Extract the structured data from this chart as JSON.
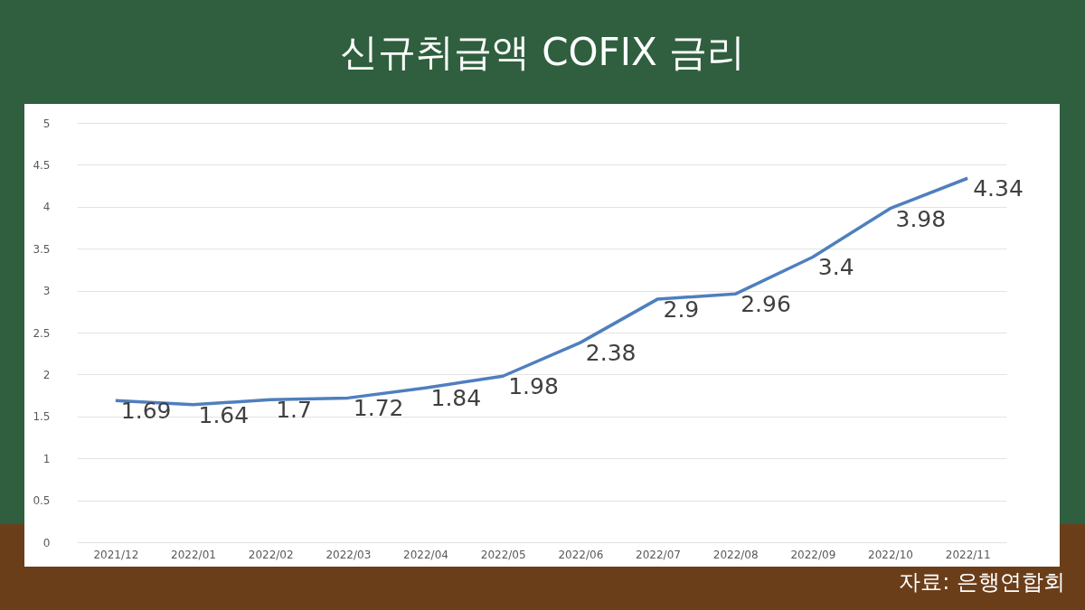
{
  "chart_data": {
    "type": "line",
    "title": "신규취급액 COFIX 금리",
    "categories": [
      "2021/12",
      "2022/01",
      "2022/02",
      "2022/03",
      "2022/04",
      "2022/05",
      "2022/06",
      "2022/07",
      "2022/08",
      "2022/09",
      "2022/10",
      "2022/11"
    ],
    "series": [
      {
        "color": "#4f7fbe",
        "values": [
          1.69,
          1.64,
          1.7,
          1.72,
          1.84,
          1.98,
          2.38,
          2.9,
          2.96,
          3.4,
          3.98,
          4.34
        ]
      }
    ],
    "ylim": [
      0,
      5
    ],
    "yticks": [
      0,
      0.5,
      1,
      1.5,
      2,
      2.5,
      3,
      3.5,
      4,
      4.5,
      5
    ],
    "grid": "y",
    "data_labels": true,
    "annotations": [
      "자료: 은행연합회"
    ]
  }
}
